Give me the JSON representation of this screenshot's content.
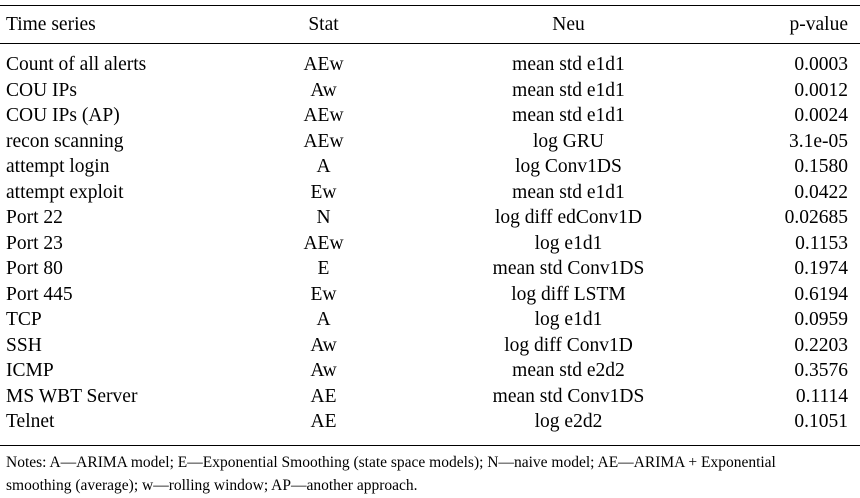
{
  "table": {
    "headers": {
      "series": "Time series",
      "stat": "Stat",
      "neu": "Neu",
      "pvalue": "p-value"
    },
    "rows": [
      {
        "series": "Count of all alerts",
        "stat": "AEw",
        "neu": "mean std e1d1",
        "pvalue": "0.0003"
      },
      {
        "series": "COU IPs",
        "stat": "Aw",
        "neu": "mean std e1d1",
        "pvalue": "0.0012"
      },
      {
        "series": "COU IPs (AP)",
        "stat": "AEw",
        "neu": "mean std e1d1",
        "pvalue": "0.0024"
      },
      {
        "series": "recon scanning",
        "stat": "AEw",
        "neu": "log GRU",
        "pvalue": "3.1e-05"
      },
      {
        "series": "attempt login",
        "stat": "A",
        "neu": "log Conv1DS",
        "pvalue": "0.1580"
      },
      {
        "series": "attempt exploit",
        "stat": "Ew",
        "neu": "mean std e1d1",
        "pvalue": "0.0422"
      },
      {
        "series": "Port 22",
        "stat": "N",
        "neu": "log diff edConv1D",
        "pvalue": "0.02685"
      },
      {
        "series": "Port 23",
        "stat": "AEw",
        "neu": "log e1d1",
        "pvalue": "0.1153"
      },
      {
        "series": "Port 80",
        "stat": "E",
        "neu": "mean std Conv1DS",
        "pvalue": "0.1974"
      },
      {
        "series": "Port 445",
        "stat": "Ew",
        "neu": "log diff LSTM",
        "pvalue": "0.6194"
      },
      {
        "series": "TCP",
        "stat": "A",
        "neu": "log e1d1",
        "pvalue": "0.0959"
      },
      {
        "series": "SSH",
        "stat": "Aw",
        "neu": "log diff Conv1D",
        "pvalue": "0.2203"
      },
      {
        "series": "ICMP",
        "stat": "Aw",
        "neu": "mean std e2d2",
        "pvalue": "0.3576"
      },
      {
        "series": "MS WBT Server",
        "stat": "AE",
        "neu": "mean std Conv1DS",
        "pvalue": "0.1114"
      },
      {
        "series": "Telnet",
        "stat": "AE",
        "neu": "log e2d2",
        "pvalue": "0.1051"
      }
    ]
  },
  "notes": {
    "line1": "Notes: A—ARIMA model; E—Exponential Smoothing (state space models); N—naive model; AE—ARIMA + Exponential",
    "line2": "smoothing (average); w—rolling window; AP—another approach."
  }
}
